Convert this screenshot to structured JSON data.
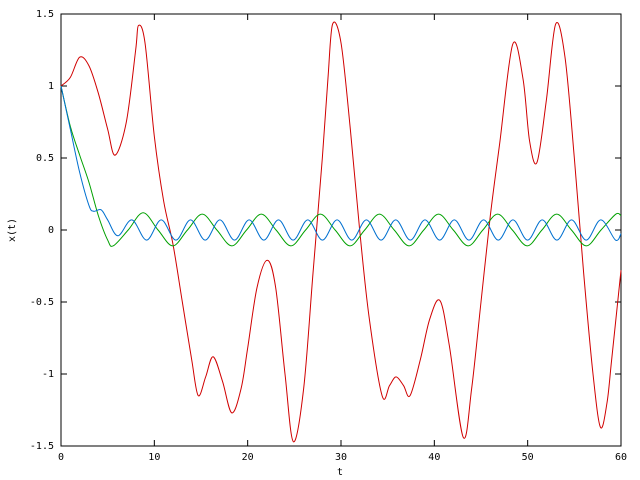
{
  "chart_data": {
    "type": "line",
    "x_label": "t",
    "y_label": "x(t)",
    "xlim": [
      0,
      60
    ],
    "xticks": [
      0,
      10,
      20,
      30,
      40,
      50,
      60
    ],
    "ylim": [
      -1.5,
      1.5
    ],
    "yticks": [
      -1.5,
      -1,
      -0.5,
      0,
      0.5,
      1,
      1.5
    ],
    "series": [
      {
        "color": "#d00000",
        "x": [
          0,
          1,
          2,
          3,
          4,
          5,
          5.8,
          7,
          8,
          8.3,
          9,
          10,
          11,
          12,
          13,
          14,
          14.7,
          15.5,
          16.3,
          17.3,
          18.3,
          19.3,
          20,
          21,
          22.1,
          23,
          24,
          24.9,
          26,
          27,
          28,
          28.6,
          29.1,
          30,
          31,
          32,
          33,
          34.4,
          35.2,
          35.9,
          36.7,
          37.4,
          38.5,
          39.5,
          40.6,
          41.6,
          43.1,
          44,
          45,
          46,
          47,
          48.4,
          49.5,
          50.2,
          51,
          52,
          53,
          54,
          55,
          56,
          57,
          57.8,
          58.5,
          59,
          60
        ],
        "values": [
          1.0,
          1.06,
          1.2,
          1.14,
          0.95,
          0.7,
          0.52,
          0.75,
          1.25,
          1.42,
          1.3,
          0.65,
          0.2,
          -0.1,
          -0.5,
          -0.9,
          -1.15,
          -1.02,
          -0.88,
          -1.05,
          -1.27,
          -1.1,
          -0.82,
          -0.4,
          -0.21,
          -0.4,
          -1.0,
          -1.47,
          -1.1,
          -0.3,
          0.5,
          1.05,
          1.43,
          1.3,
          0.7,
          0.0,
          -0.6,
          -1.15,
          -1.08,
          -1.02,
          -1.08,
          -1.15,
          -0.9,
          -0.62,
          -0.49,
          -0.8,
          -1.44,
          -1.1,
          -0.5,
          0.1,
          0.6,
          1.29,
          1.05,
          0.62,
          0.47,
          0.9,
          1.43,
          1.2,
          0.5,
          -0.3,
          -1.0,
          -1.37,
          -1.2,
          -0.9,
          -0.28
        ]
      },
      {
        "color": "#00a000",
        "x": [
          0,
          1,
          2,
          3,
          4,
          5,
          5.6,
          7.2,
          8.8,
          10.4,
          11.97,
          13.55,
          15.13,
          16.7,
          18.3,
          19.88,
          21.46,
          23.04,
          24.63,
          26.21,
          27.79,
          29.37,
          30.96,
          32.54,
          34.12,
          35.7,
          37.29,
          38.87,
          40.45,
          42.03,
          43.62,
          45.2,
          46.78,
          48.36,
          49.95,
          51.53,
          53.11,
          54.69,
          56.28,
          57.86,
          59.44,
          60
        ],
        "values": [
          1.0,
          0.72,
          0.52,
          0.33,
          0.1,
          -0.07,
          -0.11,
          0,
          0.12,
          0,
          -0.11,
          0,
          0.11,
          0,
          -0.11,
          0,
          0.11,
          0,
          -0.11,
          0,
          0.11,
          0,
          -0.11,
          0,
          0.11,
          0,
          -0.11,
          0,
          0.11,
          0,
          -0.11,
          0,
          0.11,
          0,
          -0.11,
          0,
          0.11,
          0,
          -0.11,
          0,
          0.11,
          0.1
        ]
      },
      {
        "color": "#0070d0",
        "x": [
          0,
          0.5,
          1,
          2,
          3,
          3.5,
          4.3,
          5,
          6.1,
          7.6,
          9.17,
          10.74,
          12.31,
          13.88,
          15.45,
          17.02,
          18.59,
          20.16,
          21.73,
          23.3,
          24.87,
          26.44,
          28.01,
          29.58,
          31.15,
          32.72,
          34.29,
          35.86,
          37.43,
          39.0,
          40.57,
          42.14,
          43.71,
          45.28,
          46.85,
          48.42,
          49.99,
          51.56,
          53.13,
          54.7,
          56.27,
          57.84,
          59.41,
          60
        ],
        "values": [
          1.0,
          0.85,
          0.7,
          0.4,
          0.17,
          0.13,
          0.14,
          0.07,
          -0.04,
          0.07,
          -0.07,
          0.07,
          -0.07,
          0.07,
          -0.07,
          0.07,
          -0.07,
          0.07,
          -0.07,
          0.07,
          -0.07,
          0.07,
          -0.07,
          0.07,
          -0.07,
          0.07,
          -0.07,
          0.07,
          -0.07,
          0.07,
          -0.07,
          0.07,
          -0.07,
          0.07,
          -0.07,
          0.07,
          -0.07,
          0.07,
          -0.07,
          0.07,
          -0.07,
          0.07,
          -0.07,
          -0.025
        ]
      }
    ]
  }
}
